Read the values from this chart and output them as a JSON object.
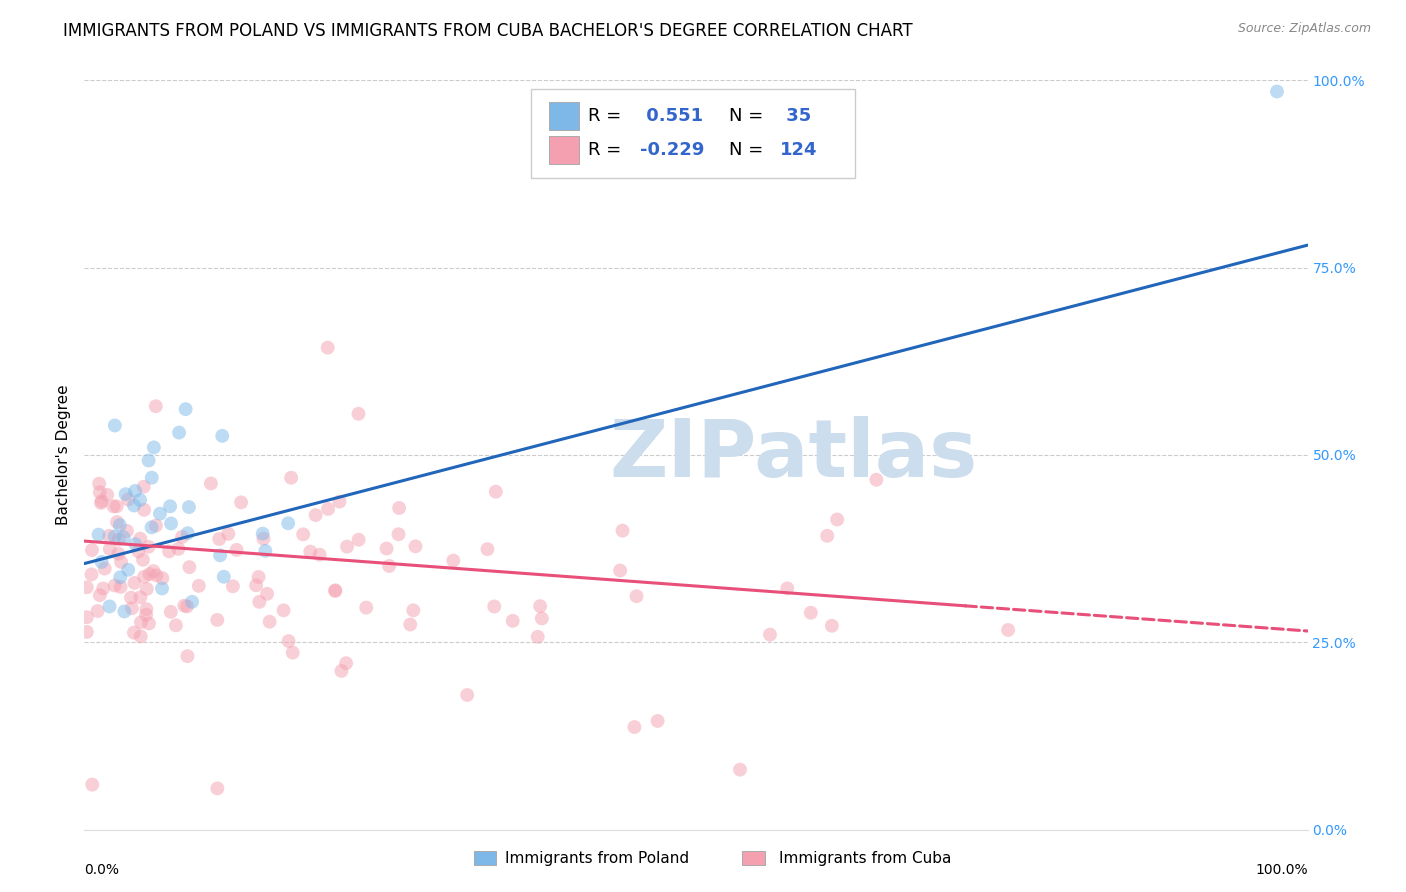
{
  "title": "IMMIGRANTS FROM POLAND VS IMMIGRANTS FROM CUBA BACHELOR'S DEGREE CORRELATION CHART",
  "source": "Source: ZipAtlas.com",
  "ylabel": "Bachelor's Degree",
  "xlim": [
    0.0,
    1.0
  ],
  "ylim": [
    0.0,
    1.0
  ],
  "ytick_values": [
    0.0,
    0.25,
    0.5,
    0.75,
    1.0
  ],
  "ytick_labels": [
    "0.0%",
    "25.0%",
    "50.0%",
    "75.0%",
    "100.0%"
  ],
  "poland_color": "#7db8e8",
  "cuba_color": "#f4a0b0",
  "poland_line_color": "#2266bb",
  "cuba_line_color": "#e8507a",
  "poland_R": 0.551,
  "poland_N": 35,
  "cuba_R": -0.229,
  "cuba_N": 124,
  "legend_R_color": "#3366cc",
  "watermark": "ZIPatlas",
  "watermark_color": "#ccdded",
  "title_fontsize": 12,
  "axis_label_fontsize": 11,
  "tick_fontsize": 10,
  "legend_fontsize": 13,
  "dot_size": 100,
  "dot_alpha": 0.5,
  "line_width": 2.2,
  "grid_color": "#cccccc",
  "background_color": "#ffffff",
  "right_ytick_color": "#3399ff",
  "poland_line_x0": 0.0,
  "poland_line_y0": 0.355,
  "poland_line_x1": 1.0,
  "poland_line_y1": 0.78,
  "cuba_line_x0": 0.0,
  "cuba_line_y0": 0.385,
  "cuba_line_x1": 1.0,
  "cuba_line_y1": 0.265
}
